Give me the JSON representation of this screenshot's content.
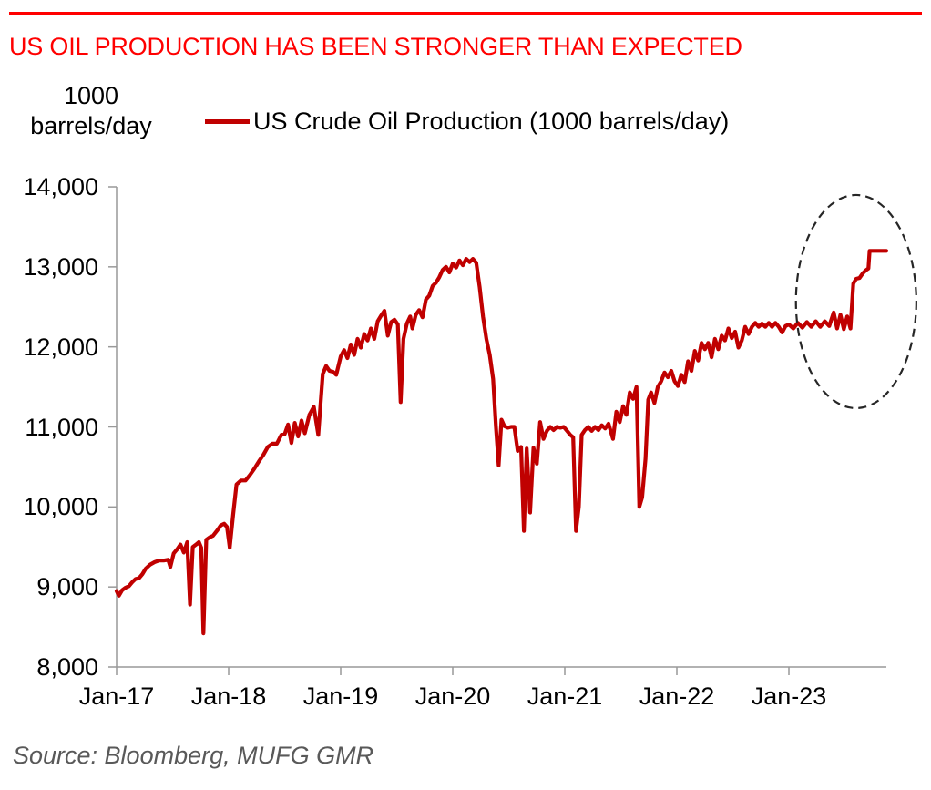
{
  "header": {
    "title": "US OIL PRODUCTION HAS BEEN STRONGER THAN EXPECTED"
  },
  "footer": {
    "source": "Source: Bloomberg, MUFG GMR"
  },
  "colors": {
    "accent_red": "#FF0000",
    "line_dark_red": "#C00000",
    "axis_gray": "#999999",
    "annotation_black": "#262626",
    "source_gray": "#595959",
    "text_black": "#000000"
  },
  "chart_data": {
    "type": "line",
    "title": "US OIL PRODUCTION HAS BEEN STRONGER THAN EXPECTED",
    "ylabel": "1000 barrels/day",
    "xlabel": "",
    "grid": false,
    "legend_position": "top",
    "y_axis": {
      "unit_label_lines": [
        "1000",
        "barrels/day"
      ],
      "range": [
        8000,
        14000
      ],
      "ticks": [
        8000,
        9000,
        10000,
        11000,
        12000,
        13000,
        14000
      ],
      "tick_labels": [
        "8,000",
        "9,000",
        "10,000",
        "11,000",
        "12,000",
        "13,000",
        "14,000"
      ]
    },
    "x_axis": {
      "range": [
        2017.0,
        2023.87
      ],
      "ticks": [
        2017,
        2018,
        2019,
        2020,
        2021,
        2022,
        2023
      ],
      "tick_labels": [
        "Jan-17",
        "Jan-18",
        "Jan-19",
        "Jan-20",
        "Jan-21",
        "Jan-22",
        "Jan-23"
      ]
    },
    "legend": {
      "label": "US Crude Oil Production (1000 barrels/day)"
    },
    "series": [
      {
        "name": "US Crude Oil Production (1000 barrels/day)",
        "color": "#C00000",
        "points": [
          [
            2017.0,
            8950
          ],
          [
            2017.02,
            8890
          ],
          [
            2017.05,
            8960
          ],
          [
            2017.08,
            8990
          ],
          [
            2017.11,
            9010
          ],
          [
            2017.14,
            9060
          ],
          [
            2017.17,
            9100
          ],
          [
            2017.2,
            9110
          ],
          [
            2017.23,
            9160
          ],
          [
            2017.26,
            9230
          ],
          [
            2017.3,
            9280
          ],
          [
            2017.34,
            9310
          ],
          [
            2017.38,
            9330
          ],
          [
            2017.42,
            9330
          ],
          [
            2017.46,
            9340
          ],
          [
            2017.48,
            9250
          ],
          [
            2017.51,
            9420
          ],
          [
            2017.54,
            9470
          ],
          [
            2017.57,
            9530
          ],
          [
            2017.6,
            9430
          ],
          [
            2017.63,
            9560
          ],
          [
            2017.655,
            8780
          ],
          [
            2017.68,
            9500
          ],
          [
            2017.71,
            9530
          ],
          [
            2017.735,
            9560
          ],
          [
            2017.755,
            9490
          ],
          [
            2017.775,
            8420
          ],
          [
            2017.8,
            9590
          ],
          [
            2017.83,
            9620
          ],
          [
            2017.86,
            9640
          ],
          [
            2017.9,
            9710
          ],
          [
            2017.93,
            9770
          ],
          [
            2017.96,
            9790
          ],
          [
            2017.985,
            9750
          ],
          [
            2018.01,
            9490
          ],
          [
            2018.04,
            9900
          ],
          [
            2018.07,
            10280
          ],
          [
            2018.11,
            10330
          ],
          [
            2018.15,
            10330
          ],
          [
            2018.19,
            10400
          ],
          [
            2018.23,
            10480
          ],
          [
            2018.27,
            10570
          ],
          [
            2018.31,
            10650
          ],
          [
            2018.35,
            10750
          ],
          [
            2018.39,
            10790
          ],
          [
            2018.43,
            10790
          ],
          [
            2018.47,
            10900
          ],
          [
            2018.5,
            10910
          ],
          [
            2018.53,
            11030
          ],
          [
            2018.56,
            10800
          ],
          [
            2018.59,
            11050
          ],
          [
            2018.62,
            10880
          ],
          [
            2018.65,
            11080
          ],
          [
            2018.68,
            10920
          ],
          [
            2018.72,
            11150
          ],
          [
            2018.76,
            11250
          ],
          [
            2018.8,
            10900
          ],
          [
            2018.84,
            11660
          ],
          [
            2018.87,
            11760
          ],
          [
            2018.9,
            11700
          ],
          [
            2018.93,
            11690
          ],
          [
            2018.96,
            11650
          ],
          [
            2019.0,
            11880
          ],
          [
            2019.03,
            11960
          ],
          [
            2019.06,
            11860
          ],
          [
            2019.09,
            12030
          ],
          [
            2019.12,
            11900
          ],
          [
            2019.15,
            12100
          ],
          [
            2019.18,
            11990
          ],
          [
            2019.21,
            12160
          ],
          [
            2019.24,
            12080
          ],
          [
            2019.27,
            12230
          ],
          [
            2019.3,
            12100
          ],
          [
            2019.33,
            12320
          ],
          [
            2019.36,
            12390
          ],
          [
            2019.39,
            12450
          ],
          [
            2019.42,
            12140
          ],
          [
            2019.45,
            12310
          ],
          [
            2019.48,
            12340
          ],
          [
            2019.51,
            12280
          ],
          [
            2019.535,
            11310
          ],
          [
            2019.56,
            12100
          ],
          [
            2019.59,
            12290
          ],
          [
            2019.62,
            12380
          ],
          [
            2019.64,
            12230
          ],
          [
            2019.67,
            12400
          ],
          [
            2019.7,
            12460
          ],
          [
            2019.73,
            12370
          ],
          [
            2019.76,
            12590
          ],
          [
            2019.79,
            12640
          ],
          [
            2019.82,
            12760
          ],
          [
            2019.85,
            12800
          ],
          [
            2019.88,
            12870
          ],
          [
            2019.91,
            12960
          ],
          [
            2019.94,
            13000
          ],
          [
            2019.97,
            12930
          ],
          [
            2020.0,
            13040
          ],
          [
            2020.03,
            12990
          ],
          [
            2020.06,
            13080
          ],
          [
            2020.09,
            13020
          ],
          [
            2020.12,
            13100
          ],
          [
            2020.15,
            13060
          ],
          [
            2020.18,
            13100
          ],
          [
            2020.21,
            13050
          ],
          [
            2020.24,
            12750
          ],
          [
            2020.27,
            12380
          ],
          [
            2020.3,
            12100
          ],
          [
            2020.33,
            11900
          ],
          [
            2020.36,
            11600
          ],
          [
            2020.385,
            11000
          ],
          [
            2020.41,
            10520
          ],
          [
            2020.435,
            11090
          ],
          [
            2020.46,
            11010
          ],
          [
            2020.49,
            10990
          ],
          [
            2020.52,
            11000
          ],
          [
            2020.55,
            11000
          ],
          [
            2020.58,
            10700
          ],
          [
            2020.61,
            10750
          ],
          [
            2020.635,
            9700
          ],
          [
            2020.66,
            10730
          ],
          [
            2020.69,
            9930
          ],
          [
            2020.72,
            10740
          ],
          [
            2020.75,
            10540
          ],
          [
            2020.78,
            11060
          ],
          [
            2020.81,
            10850
          ],
          [
            2020.84,
            10950
          ],
          [
            2020.87,
            11000
          ],
          [
            2020.9,
            10960
          ],
          [
            2020.93,
            11000
          ],
          [
            2020.96,
            10990
          ],
          [
            2020.99,
            11000
          ],
          [
            2021.02,
            10950
          ],
          [
            2021.05,
            10900
          ],
          [
            2021.075,
            10870
          ],
          [
            2021.1,
            9700
          ],
          [
            2021.125,
            10000
          ],
          [
            2021.15,
            10900
          ],
          [
            2021.18,
            10960
          ],
          [
            2021.21,
            11000
          ],
          [
            2021.24,
            10950
          ],
          [
            2021.27,
            11000
          ],
          [
            2021.3,
            10960
          ],
          [
            2021.33,
            11020
          ],
          [
            2021.36,
            10980
          ],
          [
            2021.39,
            11040
          ],
          [
            2021.43,
            10850
          ],
          [
            2021.46,
            11190
          ],
          [
            2021.49,
            11060
          ],
          [
            2021.52,
            11260
          ],
          [
            2021.55,
            11150
          ],
          [
            2021.58,
            11430
          ],
          [
            2021.61,
            11350
          ],
          [
            2021.64,
            11500
          ],
          [
            2021.665,
            10000
          ],
          [
            2021.69,
            10120
          ],
          [
            2021.72,
            10600
          ],
          [
            2021.745,
            11340
          ],
          [
            2021.77,
            11430
          ],
          [
            2021.8,
            11300
          ],
          [
            2021.83,
            11500
          ],
          [
            2021.86,
            11570
          ],
          [
            2021.89,
            11680
          ],
          [
            2021.92,
            11620
          ],
          [
            2021.95,
            11700
          ],
          [
            2021.98,
            11570
          ],
          [
            2022.01,
            11510
          ],
          [
            2022.04,
            11650
          ],
          [
            2022.07,
            11560
          ],
          [
            2022.1,
            11820
          ],
          [
            2022.13,
            11700
          ],
          [
            2022.16,
            11950
          ],
          [
            2022.19,
            11830
          ],
          [
            2022.22,
            12050
          ],
          [
            2022.25,
            11970
          ],
          [
            2022.28,
            12050
          ],
          [
            2022.31,
            11870
          ],
          [
            2022.34,
            12100
          ],
          [
            2022.37,
            11970
          ],
          [
            2022.4,
            12140
          ],
          [
            2022.43,
            12080
          ],
          [
            2022.46,
            12230
          ],
          [
            2022.49,
            12110
          ],
          [
            2022.52,
            12190
          ],
          [
            2022.55,
            11990
          ],
          [
            2022.58,
            12080
          ],
          [
            2022.61,
            12250
          ],
          [
            2022.64,
            12160
          ],
          [
            2022.67,
            12250
          ],
          [
            2022.7,
            12300
          ],
          [
            2022.73,
            12250
          ],
          [
            2022.76,
            12290
          ],
          [
            2022.79,
            12250
          ],
          [
            2022.82,
            12300
          ],
          [
            2022.85,
            12250
          ],
          [
            2022.88,
            12300
          ],
          [
            2022.91,
            12250
          ],
          [
            2022.94,
            12180
          ],
          [
            2022.97,
            12260
          ],
          [
            2023.0,
            12280
          ],
          [
            2023.04,
            12230
          ],
          [
            2023.08,
            12300
          ],
          [
            2023.12,
            12240
          ],
          [
            2023.16,
            12310
          ],
          [
            2023.2,
            12250
          ],
          [
            2023.24,
            12320
          ],
          [
            2023.28,
            12250
          ],
          [
            2023.32,
            12320
          ],
          [
            2023.36,
            12260
          ],
          [
            2023.4,
            12430
          ],
          [
            2023.43,
            12230
          ],
          [
            2023.46,
            12400
          ],
          [
            2023.49,
            12220
          ],
          [
            2023.52,
            12380
          ],
          [
            2023.55,
            12230
          ],
          [
            2023.575,
            12790
          ],
          [
            2023.6,
            12850
          ],
          [
            2023.63,
            12860
          ],
          [
            2023.66,
            12920
          ],
          [
            2023.69,
            12960
          ],
          [
            2023.71,
            12980
          ],
          [
            2023.72,
            13200
          ],
          [
            2023.76,
            13200
          ],
          [
            2023.8,
            13200
          ],
          [
            2023.84,
            13200
          ],
          [
            2023.87,
            13200
          ]
        ]
      }
    ],
    "annotations": [
      {
        "type": "dashed-ellipse",
        "center": [
          2023.6,
          12566
        ],
        "rx_years": 0.537,
        "ry_units": 1332
      }
    ]
  }
}
